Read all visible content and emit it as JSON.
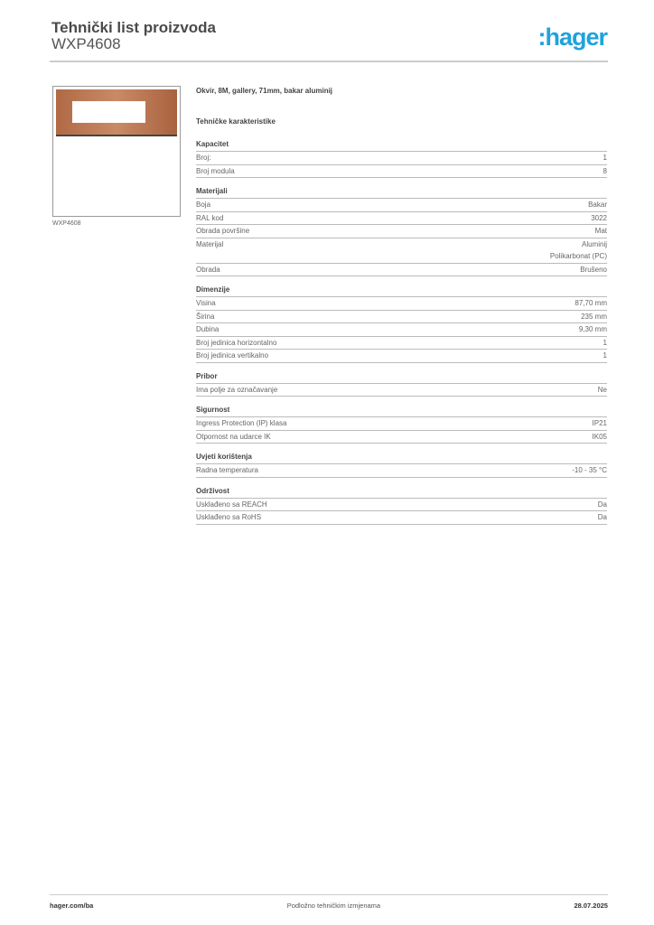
{
  "header": {
    "title": "Tehnički list proizvoda",
    "product_code": "WXP4608",
    "logo": ":hager",
    "brand_color": "#1fa3dc"
  },
  "image": {
    "caption": "WXP4608",
    "frame_color": "#b06a45"
  },
  "product": {
    "description": "Okvir, 8M, gallery, 71mm, bakar aluminij",
    "section_title": "Tehničke karakteristike"
  },
  "sections": [
    {
      "title": "Kapacitet",
      "rows": [
        {
          "label": "Broj:",
          "value": "1"
        },
        {
          "label": "Broj modula",
          "value": "8"
        }
      ]
    },
    {
      "title": "Materijali",
      "rows": [
        {
          "label": "Boja",
          "value": "Bakar"
        },
        {
          "label": "RAL kod",
          "value": "3022"
        },
        {
          "label": "Obrada površine",
          "value": "Mat"
        },
        {
          "label": "Materijal",
          "value": "Aluminij\nPolikarbonat (PC)"
        },
        {
          "label": "Obrada",
          "value": "Brušeno"
        }
      ]
    },
    {
      "title": "Dimenzije",
      "rows": [
        {
          "label": "Visina",
          "value": "87,70 mm"
        },
        {
          "label": "Širina",
          "value": "235 mm"
        },
        {
          "label": "Dubina",
          "value": "9,30 mm"
        },
        {
          "label": "Broj jedinica horizontalno",
          "value": "1"
        },
        {
          "label": "Broj jedinica vertikalno",
          "value": "1"
        }
      ]
    },
    {
      "title": "Pribor",
      "rows": [
        {
          "label": "Ima polje za označavanje",
          "value": "Ne"
        }
      ]
    },
    {
      "title": "Sigurnost",
      "rows": [
        {
          "label": "Ingress Protection (IP) klasa",
          "value": "IP21"
        },
        {
          "label": "Otpornost na udarce IK",
          "value": "IK05"
        }
      ]
    },
    {
      "title": "Uvjeti korištenja",
      "rows": [
        {
          "label": "Radna temperatura",
          "value": "-10 - 35 °C"
        }
      ]
    },
    {
      "title": "Održivost",
      "rows": [
        {
          "label": "Usklađeno sa REACH",
          "value": "Da"
        },
        {
          "label": "Usklađeno sa RoHS",
          "value": "Da"
        }
      ]
    }
  ],
  "footer": {
    "website": "hager.com/ba",
    "note": "Podložno tehničkim izmjenama",
    "date": "28.07.2025"
  }
}
